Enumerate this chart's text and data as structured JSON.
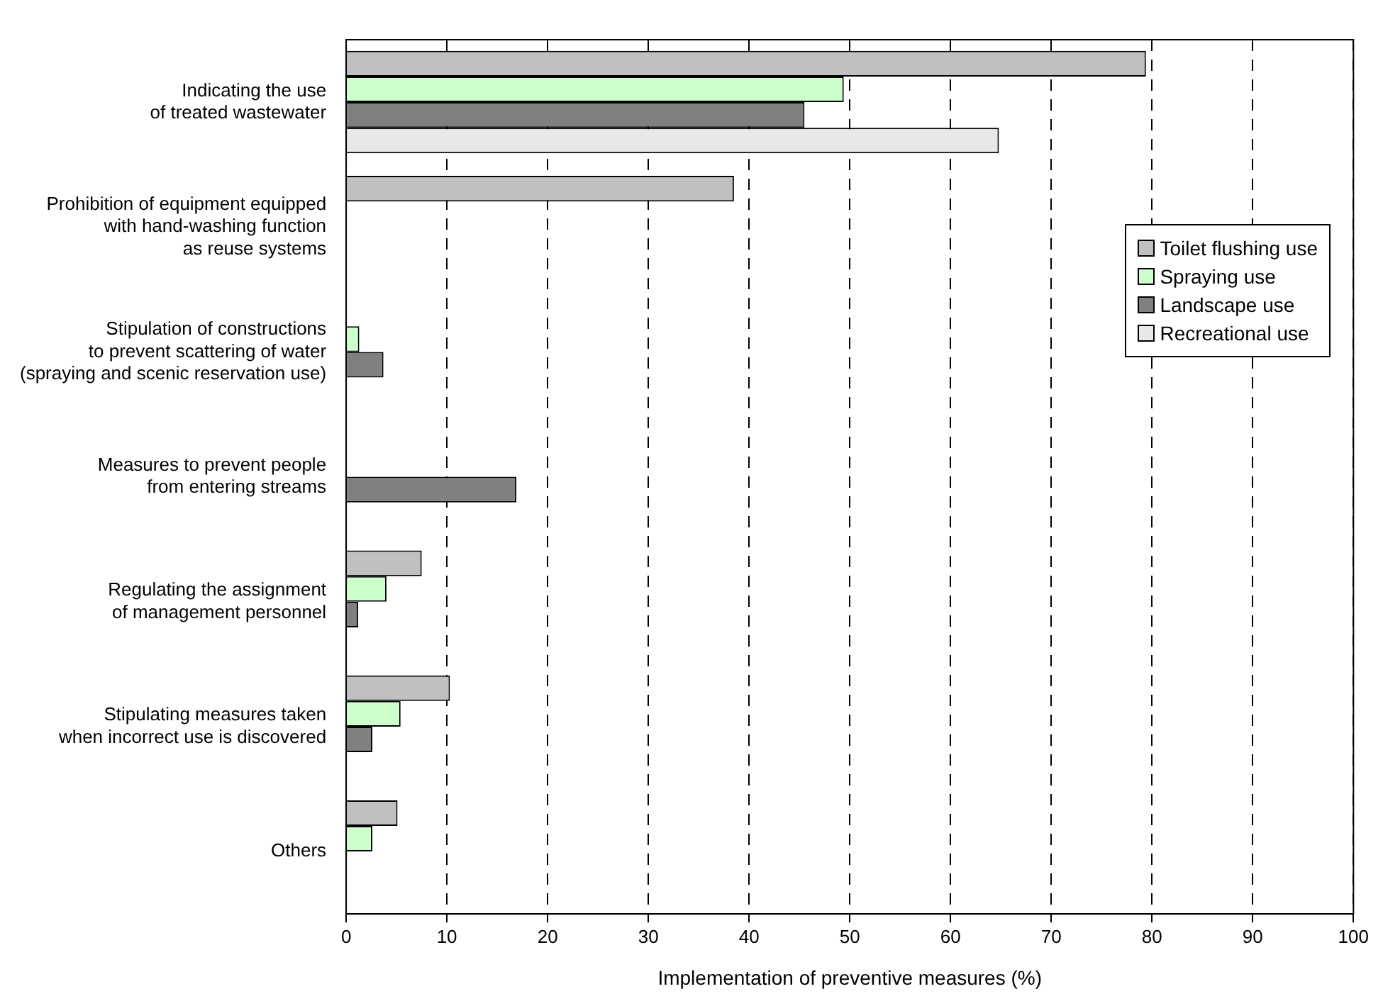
{
  "chart_data": {
    "type": "bar",
    "orientation": "horizontal",
    "xlabel": "Implementation of preventive measures (%)",
    "categories": [
      "Indicating the use\nof treated wastewater",
      "Prohibition of equipment equipped\nwith hand-washing function\nas reuse systems",
      "Stipulation of constructions\nto prevent scattering of water\n(spraying and scenic reservation use)",
      "Measures to prevent people\nfrom entering streams",
      "Regulating the assignment\nof management personnel",
      "Stipulating measures taken\nwhen incorrect use is discovered",
      "Others"
    ],
    "series": [
      {
        "name": "Toilet flushing use",
        "color": "#c0c0c0",
        "values": [
          79.4,
          38.5,
          null,
          null,
          7.5,
          10.3,
          5.1
        ]
      },
      {
        "name": "Spraying use",
        "color": "#ccffcc",
        "values": [
          49.4,
          null,
          1.3,
          null,
          4.0,
          5.4,
          2.6
        ]
      },
      {
        "name": "Landscape use",
        "color": "#808080",
        "values": [
          45.5,
          null,
          3.7,
          16.9,
          1.2,
          2.6,
          null
        ]
      },
      {
        "name": "Recreational use",
        "color": "#e8e8e8",
        "values": [
          64.8,
          null,
          null,
          null,
          null,
          null,
          null
        ]
      }
    ],
    "xlim": [
      0,
      100
    ],
    "xticks": [
      0,
      10,
      20,
      30,
      40,
      50,
      60,
      70,
      80,
      90,
      100
    ],
    "grid": "x",
    "legend": "top right"
  }
}
